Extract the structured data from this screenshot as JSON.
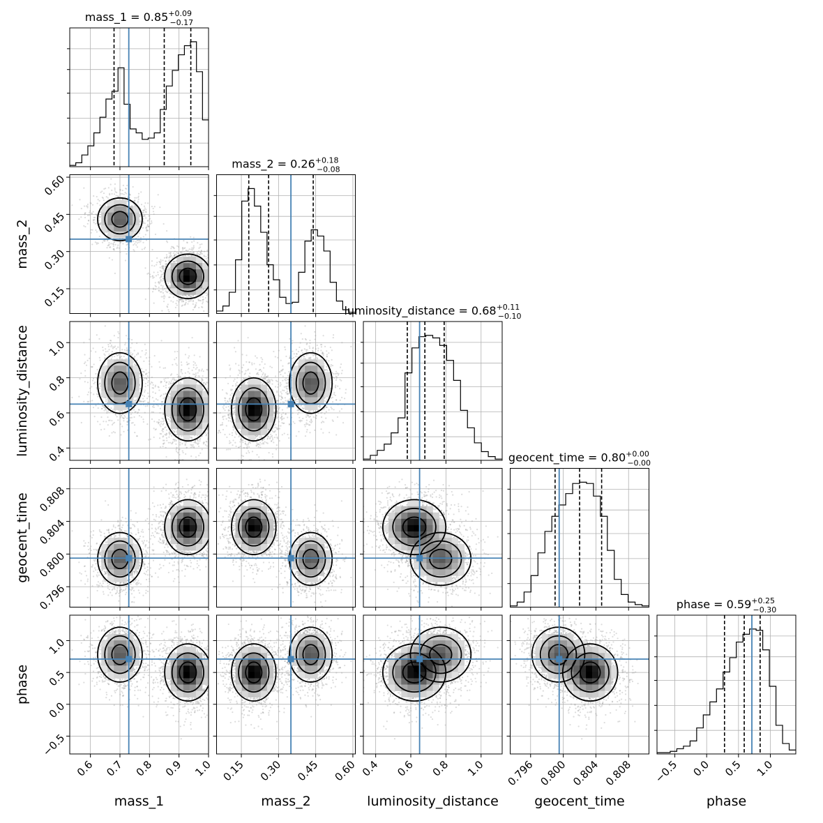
{
  "chart_data": {
    "type": "corner",
    "parameters": [
      {
        "key": "mass_1",
        "label": "mass_1",
        "range": [
          0.53,
          1.0
        ],
        "ticks": [
          0.6,
          0.7,
          0.8,
          0.9,
          1.0
        ],
        "tick_labels": [
          "0.6",
          "0.7",
          "0.8",
          "0.9",
          "1.0"
        ],
        "truth": 0.73,
        "quantiles": [
          0.68,
          0.85,
          0.94
        ],
        "title": {
          "name": "mass_1",
          "value": "0.85",
          "plus": "+0.09",
          "minus": "−0.17"
        }
      },
      {
        "key": "mass_2",
        "label": "mass_2",
        "range": [
          0.05,
          0.61
        ],
        "ticks": [
          0.15,
          0.3,
          0.45,
          0.6
        ],
        "tick_labels": [
          "0.15",
          "0.30",
          "0.45",
          "0.60"
        ],
        "truth": 0.35,
        "quantiles": [
          0.18,
          0.26,
          0.44
        ],
        "title": {
          "name": "mass_2",
          "value": "0.26",
          "plus": "+0.18",
          "minus": "−0.08"
        }
      },
      {
        "key": "luminosity_distance",
        "label": "luminosity_distance",
        "range": [
          0.33,
          1.12
        ],
        "ticks": [
          0.4,
          0.6,
          0.8,
          1.0
        ],
        "tick_labels": [
          "0.4",
          "0.6",
          "0.8",
          "1.0"
        ],
        "truth": 0.65,
        "quantiles": [
          0.58,
          0.68,
          0.79
        ],
        "title": {
          "name": "luminosity_distance",
          "value": "0.68",
          "plus": "+0.11",
          "minus": "−0.10"
        }
      },
      {
        "key": "geocent_time",
        "label": "geocent_time",
        "range": [
          0.7935,
          0.8105
        ],
        "ticks": [
          0.796,
          0.8,
          0.804,
          0.808
        ],
        "tick_labels": [
          "0.796",
          "0.800",
          "0.804",
          "0.808"
        ],
        "truth": 0.7995,
        "quantiles": [
          0.799,
          0.802,
          0.8047
        ],
        "title": {
          "name": "geocent_time",
          "value": "0.80",
          "plus": "+0.00",
          "minus": "−0.00"
        }
      },
      {
        "key": "phase",
        "label": "phase",
        "range": [
          -0.78,
          1.4
        ],
        "ticks": [
          -0.5,
          0.0,
          0.5,
          1.0
        ],
        "tick_labels": [
          "−0.5",
          "0.0",
          "0.5",
          "1.0"
        ],
        "truth": 0.71,
        "quantiles": [
          0.28,
          0.59,
          0.84
        ],
        "title": {
          "name": "phase",
          "value": "0.59",
          "plus": "+0.25",
          "minus": "−0.30"
        }
      }
    ],
    "histograms": {
      "mass_1": [
        0.01,
        0.03,
        0.09,
        0.16,
        0.26,
        0.38,
        0.52,
        0.58,
        0.76,
        0.48,
        0.29,
        0.26,
        0.21,
        0.22,
        0.26,
        0.44,
        0.62,
        0.74,
        0.86,
        0.93,
        0.96,
        0.73,
        0.36
      ],
      "mass_2": [
        0.02,
        0.06,
        0.17,
        0.43,
        0.9,
        1.0,
        0.86,
        0.65,
        0.39,
        0.27,
        0.13,
        0.08,
        0.09,
        0.33,
        0.58,
        0.67,
        0.62,
        0.5,
        0.25,
        0.1,
        0.03,
        0.01
      ],
      "luminosity_distance": [
        0.01,
        0.04,
        0.08,
        0.13,
        0.22,
        0.34,
        0.7,
        0.9,
        0.99,
        1.0,
        0.98,
        0.92,
        0.8,
        0.64,
        0.4,
        0.26,
        0.14,
        0.07,
        0.03,
        0.01
      ],
      "geocent_time": [
        0.01,
        0.04,
        0.12,
        0.25,
        0.43,
        0.6,
        0.72,
        0.81,
        0.9,
        0.98,
        0.99,
        0.98,
        0.88,
        0.72,
        0.45,
        0.22,
        0.1,
        0.04,
        0.02,
        0.01
      ],
      "phase": [
        0.01,
        0.01,
        0.02,
        0.04,
        0.06,
        0.1,
        0.2,
        0.3,
        0.4,
        0.5,
        0.63,
        0.74,
        0.86,
        0.92,
        0.96,
        0.95,
        0.8,
        0.52,
        0.22,
        0.08,
        0.03
      ]
    },
    "modes": [
      {
        "weight": 0.4,
        "mass_1": 0.7,
        "mass_2": 0.43,
        "luminosity_distance": 0.77,
        "geocent_time": 0.7994,
        "phase": 0.78
      },
      {
        "weight": 0.6,
        "mass_1": 0.93,
        "mass_2": 0.2,
        "luminosity_distance": 0.62,
        "geocent_time": 0.8033,
        "phase": 0.5
      }
    ],
    "spreads": {
      "mass_1": 0.035,
      "mass_2": 0.04,
      "luminosity_distance": 0.08,
      "geocent_time": 0.0015,
      "phase": 0.2
    },
    "truth_color": "#4682b4",
    "contour_color": "#000000",
    "grid": true
  }
}
